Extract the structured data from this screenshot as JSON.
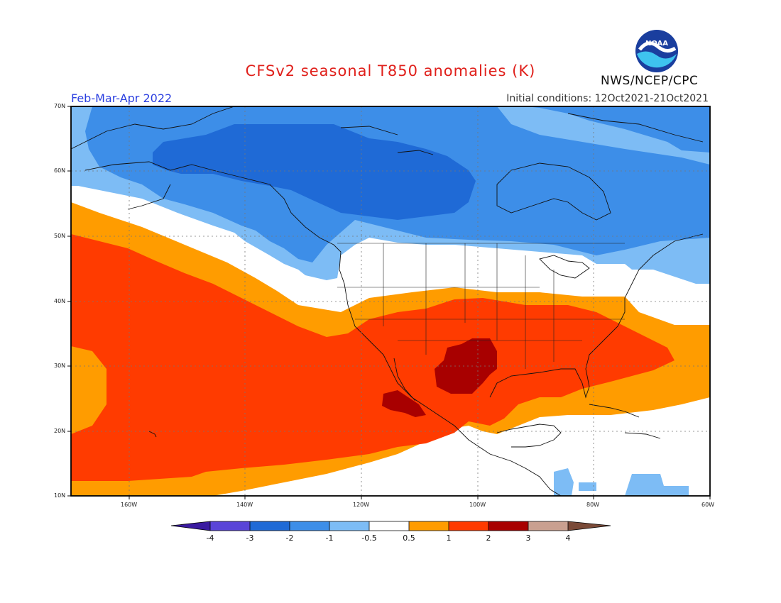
{
  "title": "CFSv2 seasonal T850 anomalies (K)",
  "period": "Feb-Mar-Apr 2022",
  "initial_conditions": "Initial conditions: 12Oct2021-21Oct2021",
  "organization": "NWS/NCEP/CPC",
  "logo_text": "NOAA",
  "map": {
    "lon_range": [
      -170,
      -60
    ],
    "lat_range": [
      10,
      70
    ],
    "lat_ticks": [
      "10N",
      "20N",
      "30N",
      "40N",
      "50N",
      "60N",
      "70N"
    ],
    "lon_ticks": [
      "160W",
      "140W",
      "120W",
      "100W",
      "80W",
      "60W"
    ]
  },
  "colorbar": {
    "labels": [
      "-4",
      "-3",
      "-2",
      "-1",
      "-0.5",
      "0.5",
      "1",
      "2",
      "3",
      "4"
    ],
    "colors": [
      "#3a1aa0",
      "#5a45d8",
      "#1f6ad6",
      "#3d8ee8",
      "#7dbcf5",
      "#ffffff",
      "#ff9c00",
      "#ff3b00",
      "#a80000",
      "#c9a090",
      "#7a4a38"
    ]
  },
  "colors": {
    "title": "#e0201b",
    "period": "#2b3fe0",
    "neg_strong": "#1f6ad6",
    "neg_mid": "#3d8ee8",
    "neg_weak": "#7dbcf5",
    "pos_weak": "#ff9c00",
    "pos_mid": "#ff3b00",
    "pos_strong": "#a80000"
  }
}
